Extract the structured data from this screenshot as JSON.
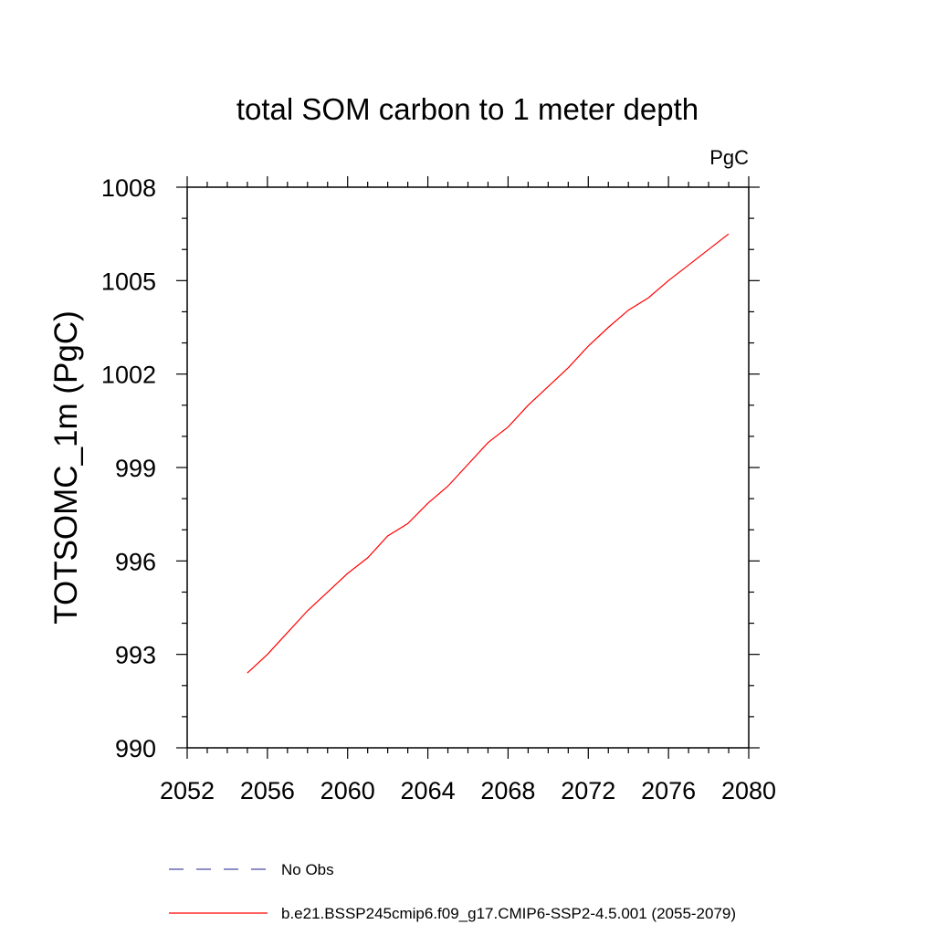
{
  "chart_data": {
    "type": "line",
    "title": "total SOM carbon to 1 meter depth",
    "units": "PgC",
    "ylabel": "TOTSOMC_1m  (PgC)",
    "xlabel": "",
    "xlim": [
      2052,
      2080
    ],
    "ylim": [
      990,
      1008
    ],
    "xticks": [
      2052,
      2056,
      2060,
      2064,
      2068,
      2072,
      2076,
      2080
    ],
    "xtick_labels": [
      "2052",
      "2056",
      "2060",
      "2064",
      "2068",
      "2072",
      "2076",
      "2080"
    ],
    "yticks": [
      990,
      993,
      996,
      999,
      1002,
      1005,
      1008
    ],
    "ytick_labels": [
      "990",
      "993",
      "996",
      "999",
      "1002",
      "1005",
      "1008"
    ],
    "x_minor_step": 1,
    "y_minor_step": 1,
    "grid": false,
    "series": [
      {
        "name": "b.e21.BSSP245cmip6.f09_g17.CMIP6-SSP2-4.5.001 (2055-2079)",
        "color": "#ff0000",
        "style": "solid",
        "x": [
          2055,
          2056,
          2057,
          2058,
          2059,
          2060,
          2061,
          2062,
          2063,
          2064,
          2065,
          2066,
          2067,
          2068,
          2069,
          2070,
          2071,
          2072,
          2073,
          2074,
          2075,
          2076,
          2077,
          2078,
          2079
        ],
        "y": [
          992.4,
          993.0,
          993.7,
          994.4,
          995.0,
          995.6,
          996.1,
          996.8,
          997.2,
          997.85,
          998.4,
          999.1,
          999.8,
          1000.3,
          1001.0,
          1001.6,
          1002.2,
          1002.9,
          1003.5,
          1004.05,
          1004.45,
          1005.0,
          1005.5,
          1006.0,
          1006.5
        ]
      },
      {
        "name": "No Obs",
        "color": "#4a4aa8",
        "style": "dashed",
        "x": [],
        "y": []
      }
    ],
    "legend": {
      "placement": "bottom",
      "entries": [
        "No Obs",
        "b.e21.BSSP245cmip6.f09_g17.CMIP6-SSP2-4.5.001 (2055-2079)"
      ]
    }
  }
}
